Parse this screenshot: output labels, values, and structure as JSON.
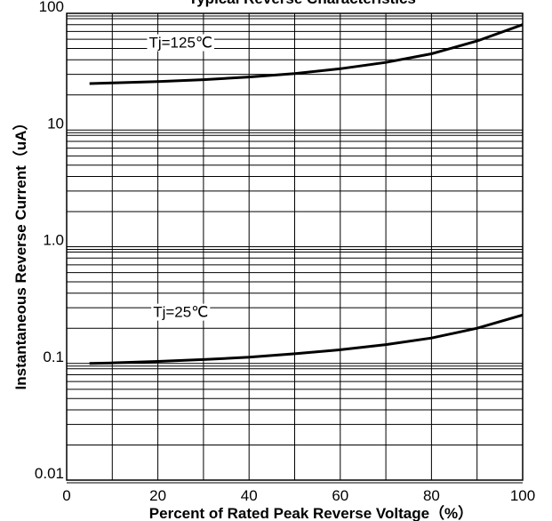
{
  "chart_data": {
    "type": "line",
    "title": "Typical Reverse Characteristics",
    "xlabel": "Percent of Rated Peak Reverse Voltage（%）",
    "ylabel": "Instantaneous Reverse Current（uA）",
    "xlim": [
      0,
      100
    ],
    "ylim": [
      0.01,
      100
    ],
    "yscale": "log",
    "grid": true,
    "x_ticks": [
      0,
      20,
      40,
      60,
      80,
      100
    ],
    "y_ticks": [
      0.01,
      0.1,
      1.0,
      10,
      100
    ],
    "x_tick_labels": [
      "0",
      "20",
      "40",
      "60",
      "80",
      "100"
    ],
    "y_tick_labels": [
      "0.01",
      "0.1",
      "1.0",
      "10",
      "100"
    ],
    "series": [
      {
        "name": "Tj=125℃",
        "x": [
          5,
          10,
          20,
          30,
          40,
          50,
          60,
          70,
          80,
          90,
          100
        ],
        "y": [
          25,
          25.3,
          26,
          27,
          28.5,
          30.5,
          33.5,
          38,
          45,
          58,
          80
        ]
      },
      {
        "name": "Tj=25℃",
        "x": [
          5,
          10,
          20,
          30,
          40,
          50,
          60,
          70,
          80,
          90,
          100
        ],
        "y": [
          0.1,
          0.101,
          0.104,
          0.108,
          0.113,
          0.121,
          0.131,
          0.145,
          0.165,
          0.2,
          0.26
        ]
      }
    ],
    "annotations": [
      {
        "text": "Tj=125℃",
        "x": 25,
        "y": 55
      },
      {
        "text": "Tj=25℃",
        "x": 25,
        "y": 0.27
      }
    ]
  }
}
